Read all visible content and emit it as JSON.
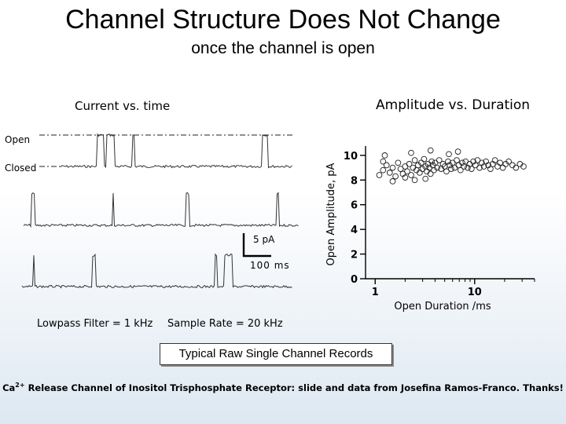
{
  "slide": {
    "title": "Channel Structure Does Not Change",
    "subtitle": "once the channel is open",
    "trace_heading": "Current vs. time",
    "scatter_heading": "Amplitude vs. Duration",
    "open_label": "Open",
    "closed_label": "Closed",
    "scale_current": "5 pA",
    "scale_time": "100 ms",
    "filter_note": "Lowpass Filter = 1 kHz",
    "rate_note": "Sample Rate = 20 kHz",
    "caption": "Typical Raw Single Channel Records",
    "credit_prefix": "Ca",
    "credit_sup": "2+",
    "credit_rest": " Release Channel of Inositol Trisphosphate Receptor: slide and data from Josefina Ramos-Franco. Thanks!"
  },
  "chart_data": {
    "type": "scatter",
    "xlabel": "Open Duration /ms",
    "ylabel": "Open Amplitude, pA",
    "xscale": "log",
    "xlim": [
      0.8,
      40
    ],
    "ylim": [
      0,
      10.5
    ],
    "xticks": [
      1,
      10
    ],
    "yticks": [
      0,
      2,
      4,
      6,
      8,
      10
    ],
    "marker": "open-circle",
    "grid": false,
    "points": [
      [
        1.2,
        8.8
      ],
      [
        1.3,
        9.2
      ],
      [
        1.4,
        8.6
      ],
      [
        1.5,
        9.0
      ],
      [
        1.6,
        8.3
      ],
      [
        1.7,
        9.4
      ],
      [
        1.8,
        8.9
      ],
      [
        1.9,
        8.5
      ],
      [
        2.0,
        9.1
      ],
      [
        2.1,
        8.7
      ],
      [
        2.2,
        9.3
      ],
      [
        2.3,
        8.4
      ],
      [
        2.4,
        9.0
      ],
      [
        2.5,
        9.6
      ],
      [
        2.6,
        8.8
      ],
      [
        2.7,
        9.2
      ],
      [
        2.8,
        8.6
      ],
      [
        2.9,
        9.4
      ],
      [
        3.0,
        8.9
      ],
      [
        3.1,
        9.7
      ],
      [
        3.2,
        9.1
      ],
      [
        3.3,
        8.7
      ],
      [
        3.4,
        9.3
      ],
      [
        3.5,
        9.0
      ],
      [
        3.6,
        8.5
      ],
      [
        3.7,
        9.5
      ],
      [
        3.8,
        9.2
      ],
      [
        3.9,
        8.8
      ],
      [
        4.0,
        9.4
      ],
      [
        4.2,
        9.0
      ],
      [
        4.4,
        9.6
      ],
      [
        4.6,
        8.9
      ],
      [
        4.8,
        9.3
      ],
      [
        5.0,
        9.1
      ],
      [
        5.2,
        8.7
      ],
      [
        5.4,
        9.5
      ],
      [
        5.6,
        9.2
      ],
      [
        5.8,
        8.9
      ],
      [
        6.0,
        9.4
      ],
      [
        6.3,
        9.0
      ],
      [
        6.6,
        9.6
      ],
      [
        6.9,
        9.2
      ],
      [
        7.2,
        8.8
      ],
      [
        7.5,
        9.4
      ],
      [
        7.8,
        9.1
      ],
      [
        8.1,
        9.5
      ],
      [
        8.5,
        9.0
      ],
      [
        8.9,
        9.3
      ],
      [
        9.3,
        8.9
      ],
      [
        9.7,
        9.5
      ],
      [
        10.2,
        9.2
      ],
      [
        10.7,
        9.6
      ],
      [
        11.2,
        9.0
      ],
      [
        11.8,
        9.4
      ],
      [
        12.4,
        9.1
      ],
      [
        13.0,
        9.5
      ],
      [
        13.7,
        9.2
      ],
      [
        14.4,
        8.9
      ],
      [
        15.2,
        9.3
      ],
      [
        16.0,
        9.6
      ],
      [
        17.0,
        9.1
      ],
      [
        18.0,
        9.4
      ],
      [
        19.2,
        9.0
      ],
      [
        20.5,
        9.3
      ],
      [
        22.0,
        9.5
      ],
      [
        24.0,
        9.2
      ],
      [
        26.0,
        9.0
      ],
      [
        28.5,
        9.3
      ],
      [
        31.0,
        9.1
      ],
      [
        1.25,
        10.0
      ],
      [
        2.3,
        10.2
      ],
      [
        3.6,
        10.4
      ],
      [
        5.5,
        10.1
      ],
      [
        6.8,
        10.3
      ],
      [
        1.5,
        7.9
      ],
      [
        2.5,
        8.0
      ],
      [
        1.1,
        8.4
      ],
      [
        1.2,
        9.5
      ],
      [
        2.0,
        8.2
      ],
      [
        3.2,
        8.1
      ]
    ]
  }
}
